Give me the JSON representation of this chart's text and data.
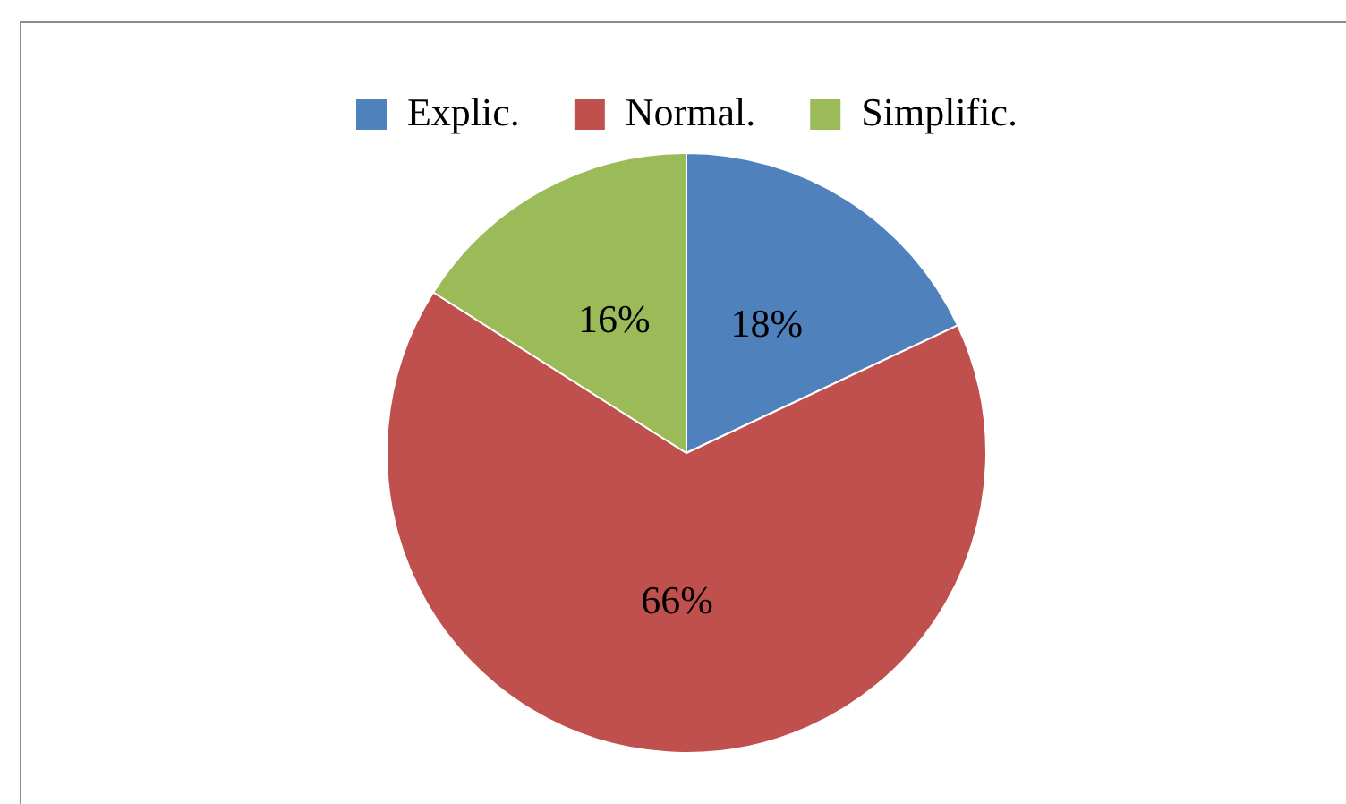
{
  "chart_data": {
    "type": "pie",
    "categories": [
      "Explic.",
      "Normal.",
      "Simplific."
    ],
    "values": [
      18,
      66,
      16
    ],
    "value_labels": [
      "18%",
      "66%",
      "16%"
    ],
    "colors": [
      "#4f81bd",
      "#c0504d",
      "#9bbb59"
    ],
    "legend": "top"
  }
}
